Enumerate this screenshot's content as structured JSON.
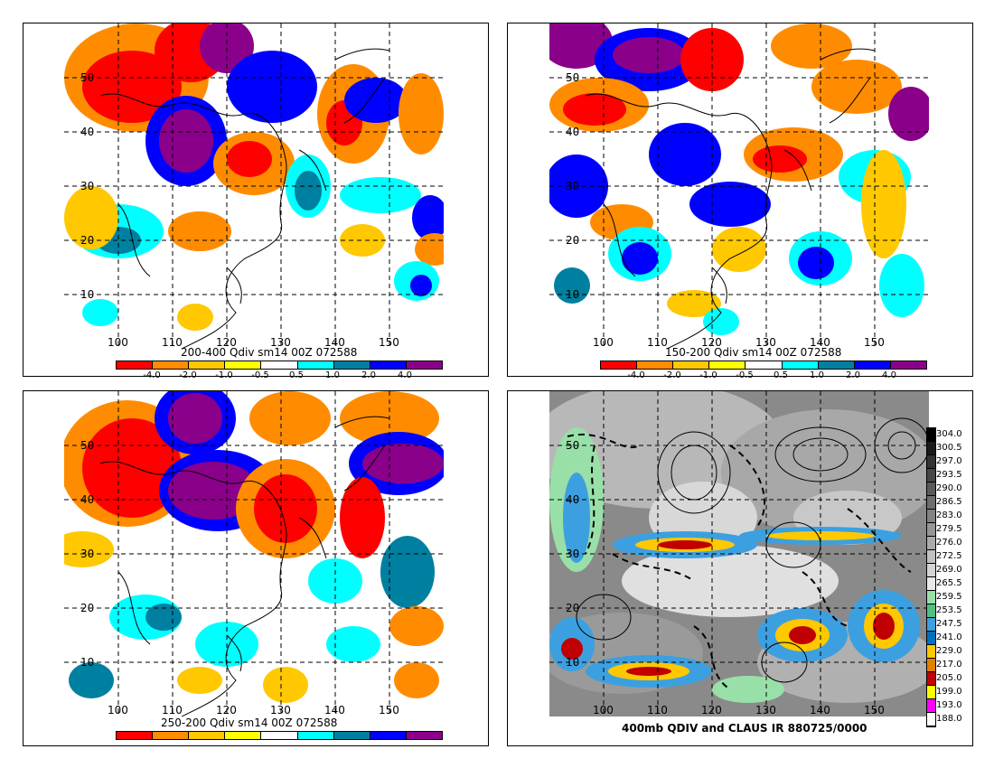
{
  "panels": [
    {
      "title": "200-400 Qdiv sm14 00Z 072588",
      "lat_labels": [
        "50",
        "40",
        "30",
        "20",
        "10"
      ],
      "lon_labels": [
        "100",
        "110",
        "120",
        "130",
        "140",
        "150"
      ],
      "scale_labels": [
        "-4.0",
        "-2.0",
        "-1.0",
        "-0.5",
        "0.5",
        "1.0",
        "2.0",
        "4.0"
      ]
    },
    {
      "title": "150-200 Qdiv sm14 00Z 072588",
      "lat_labels": [
        "50",
        "40",
        "30",
        "20",
        "10"
      ],
      "lon_labels": [
        "100",
        "110",
        "120",
        "130",
        "140",
        "150"
      ],
      "scale_labels": [
        "-4.0",
        "-2.0",
        "-1.0",
        "-0.5",
        "0.5",
        "1.0",
        "2.0",
        "4.0"
      ]
    },
    {
      "title": "250-200 Qdiv sm14 00Z 072588",
      "lat_labels": [
        "50",
        "40",
        "30",
        "20",
        "10"
      ],
      "lon_labels": [
        "100",
        "110",
        "120",
        "130",
        "140",
        "150"
      ],
      "scale_labels": []
    },
    {
      "title": "400mb QDIV and CLAUS IR 880725/0000",
      "lat_labels": [
        "50",
        "40",
        "30",
        "20",
        "10"
      ],
      "lon_labels": [
        "100",
        "110",
        "120",
        "130",
        "140",
        "150"
      ],
      "ir_scale_labels": [
        "304.0",
        "300.5",
        "297.0",
        "293.5",
        "290.0",
        "286.5",
        "283.0",
        "279.5",
        "276.0",
        "272.5",
        "269.0",
        "265.5",
        "259.5",
        "253.5",
        "247.5",
        "241.0",
        "229.0",
        "217.0",
        "205.0",
        "199.0",
        "193.0",
        "188.0"
      ]
    }
  ],
  "colors": {
    "qdiv_scale": [
      "#ff0000",
      "#ff8c00",
      "#ffc800",
      "#ffff00",
      "#ffffff",
      "#00ffff",
      "#0080a0",
      "#0000ff",
      "#8b008b"
    ],
    "ir_scale": [
      "#000000",
      "#1a1a1a",
      "#333333",
      "#474747",
      "#5a5a5a",
      "#6e6e6e",
      "#828282",
      "#969696",
      "#aaaaaa",
      "#c0c0c0",
      "#d4d4d4",
      "#e8e8e8",
      "#98e0a8",
      "#50c080",
      "#3ca0e0",
      "#0070c0",
      "#ffc800",
      "#e08000",
      "#c00000",
      "#ffff00",
      "#ff00ff",
      "#ffffff"
    ]
  }
}
